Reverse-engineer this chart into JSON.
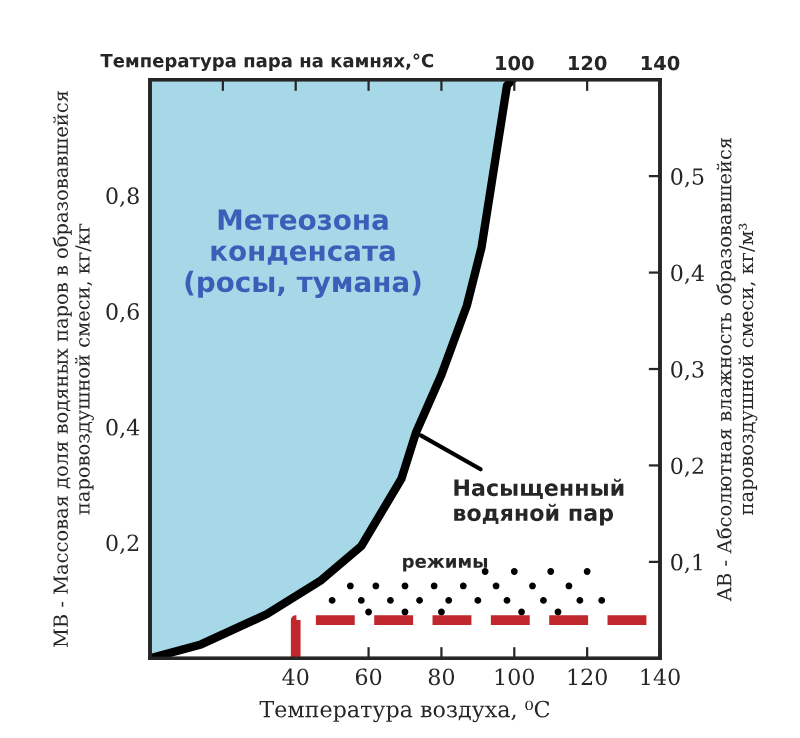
{
  "chart_data": {
    "type": "line",
    "xlabel": "Температура воздуха, ⁰С",
    "ylabel": "MB - Массовая доля водяных паров в образовавшейся\nпаровоздушной смеси, кг/кг",
    "y2label": "AB - Абсолютная влажность образовавшейся\nпаровоздушной смеси, кг/м³",
    "x2label": "Температура пара на камнях,°С",
    "xlim": [
      0,
      140
    ],
    "xticks": [
      40,
      60,
      80,
      100,
      120,
      140
    ],
    "x2lim": [
      0,
      140
    ],
    "x2ticks": [
      {
        "value": 20,
        "label": null
      },
      {
        "value": 40,
        "label": null
      },
      {
        "value": 60,
        "label": null
      },
      {
        "value": 80,
        "label": null
      },
      100,
      120,
      140
    ],
    "ylim": [
      0,
      1.0
    ],
    "yticks": [
      {
        "value": 0.2,
        "label": "0,2"
      },
      {
        "value": 0.4,
        "label": "0,4"
      },
      {
        "value": 0.6,
        "label": "0,6"
      },
      {
        "value": 0.8,
        "label": "0,8"
      }
    ],
    "y2lim": [
      0,
      0.6
    ],
    "y2ticks": [
      {
        "value": 0.1,
        "label": "0,1"
      },
      {
        "value": 0.2,
        "label": "0,2"
      },
      {
        "value": 0.3,
        "label": "0,3"
      },
      {
        "value": 0.4,
        "label": "0,4"
      },
      {
        "value": 0.5,
        "label": "0,5"
      }
    ],
    "grid": false,
    "legend": false,
    "annotations": [
      "Метеозона\nконденсата\n(росы, тумана)",
      {
        "text": "Насыщенный\nводяной пар",
        "x": 73,
        "y": 0.39
      },
      "режимы"
    ],
    "series": [
      {
        "color": "#000000",
        "line_style": "solid",
        "x": [
          0,
          14,
          32,
          47,
          58,
          69,
          73,
          80,
          87,
          91,
          95,
          98,
          99.5
        ],
        "values": [
          0,
          0.024,
          0.076,
          0.135,
          0.194,
          0.31,
          0.39,
          0.49,
          0.61,
          0.71,
          0.87,
          0.99,
          1.0
        ],
        "lower": [
          0,
          0.024,
          0.076,
          0.135,
          0.194,
          0.31,
          0.39,
          0.49,
          0.61,
          0.71,
          0.87,
          0.99,
          1.0
        ],
        "upper": [
          1.0,
          1.0,
          1.0,
          1.0,
          1.0,
          1.0,
          1.0,
          1.0,
          1.0,
          1.0,
          1.0,
          1.0,
          1.0
        ]
      },
      {
        "type": "scatter",
        "color": "#000000",
        "x": [
          92,
          100,
          110,
          120,
          55,
          62,
          70,
          78,
          86,
          95,
          105,
          115,
          50,
          58,
          66,
          74,
          82,
          90,
          98,
          108,
          118,
          124,
          60,
          70,
          80,
          102,
          112
        ],
        "values": [
          0.15,
          0.15,
          0.15,
          0.15,
          0.125,
          0.125,
          0.125,
          0.125,
          0.125,
          0.125,
          0.125,
          0.125,
          0.1,
          0.1,
          0.1,
          0.1,
          0.1,
          0.1,
          0.1,
          0.1,
          0.1,
          0.1,
          0.08,
          0.08,
          0.08,
          0.08,
          0.08
        ]
      },
      {
        "type": "line",
        "color": "#c0282d",
        "line_style": "dashed",
        "x": [
          40,
          40,
          140
        ],
        "values": [
          0,
          0.066,
          0.066
        ]
      }
    ]
  }
}
